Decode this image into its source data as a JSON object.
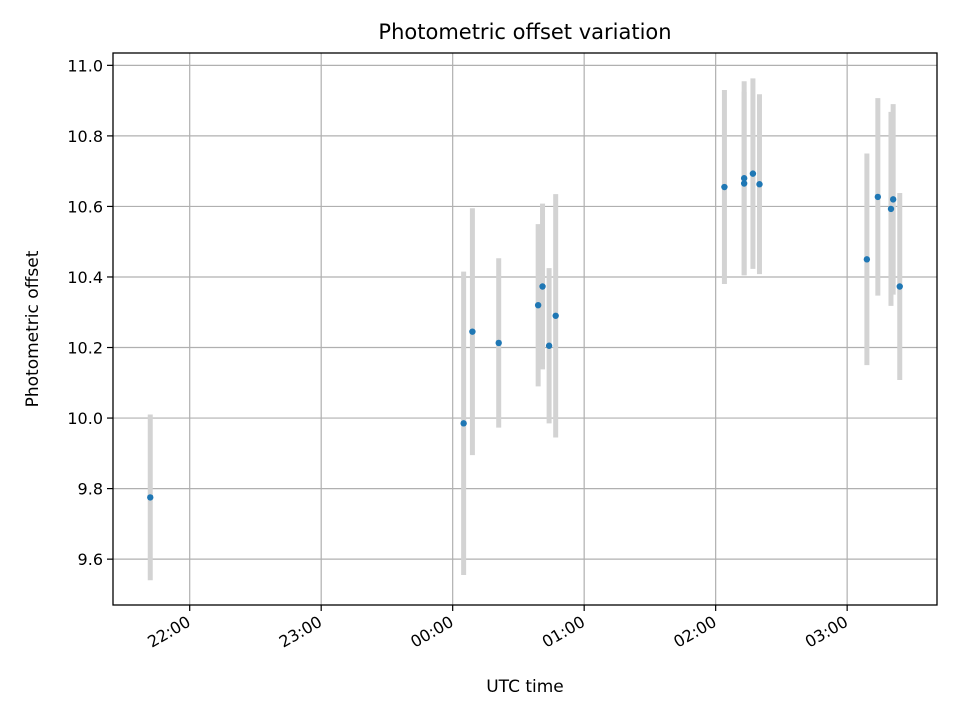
{
  "chart_data": {
    "type": "scatter",
    "title": "Photometric offset variation",
    "xlabel": "UTC time",
    "ylabel": "Photometric offset",
    "x_tick_labels": [
      "22:00",
      "23:00",
      "00:00",
      "01:00",
      "02:00",
      "03:00"
    ],
    "y_tick_labels": [
      "9.6",
      "9.8",
      "10.0",
      "10.2",
      "10.4",
      "10.6",
      "10.8",
      "11.0"
    ],
    "xlim": [
      "21:25",
      "03:41"
    ],
    "ylim": [
      9.47,
      11.035
    ],
    "grid": true,
    "legend": "none",
    "series": [
      {
        "points": [
          {
            "x": "21:42",
            "y": 9.775,
            "err": 0.235
          },
          {
            "x": "00:05",
            "y": 9.985,
            "err": 0.43
          },
          {
            "x": "00:09",
            "y": 10.245,
            "err": 0.35
          },
          {
            "x": "00:21",
            "y": 10.213,
            "err": 0.24
          },
          {
            "x": "00:39",
            "y": 10.32,
            "err": 0.23
          },
          {
            "x": "00:41",
            "y": 10.373,
            "err": 0.235
          },
          {
            "x": "00:44",
            "y": 10.205,
            "err": 0.22
          },
          {
            "x": "00:47",
            "y": 10.29,
            "err": 0.345
          },
          {
            "x": "02:04",
            "y": 10.655,
            "err": 0.275
          },
          {
            "x": "02:13",
            "y": 10.665,
            "err": 0.26
          },
          {
            "x": "02:13",
            "y": 10.68,
            "err": 0.275
          },
          {
            "x": "02:17",
            "y": 10.693,
            "err": 0.27
          },
          {
            "x": "02:20",
            "y": 10.663,
            "err": 0.255
          },
          {
            "x": "03:09",
            "y": 10.45,
            "err": 0.3
          },
          {
            "x": "03:14",
            "y": 10.627,
            "err": 0.28
          },
          {
            "x": "03:20",
            "y": 10.593,
            "err": 0.275
          },
          {
            "x": "03:21",
            "y": 10.62,
            "err": 0.27
          },
          {
            "x": "03:24",
            "y": 10.373,
            "err": 0.265
          }
        ]
      }
    ]
  },
  "colors": {
    "marker": "#1f77b4",
    "errorbar": "#d3d3d3",
    "grid": "#b0b0b0",
    "axes": "#000000"
  }
}
